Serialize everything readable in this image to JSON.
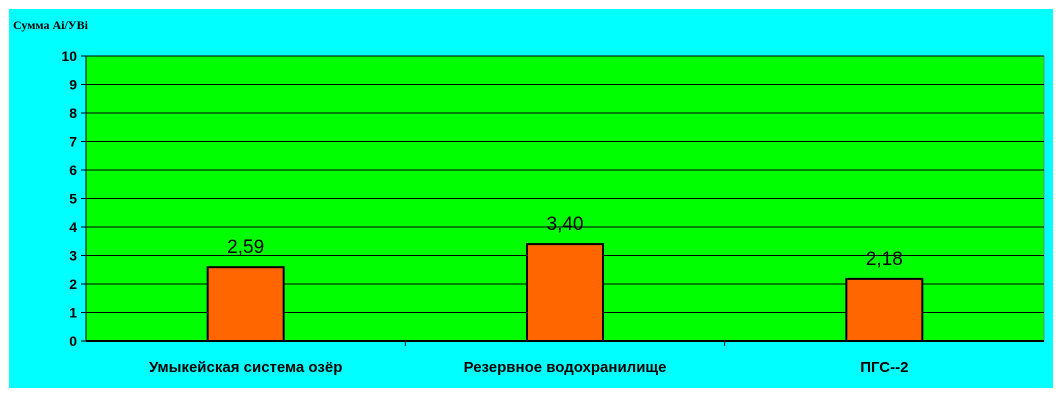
{
  "chart_data": {
    "type": "bar",
    "title": "",
    "ylabel": "Сумма Ai/УВi",
    "xlabel": "",
    "categories": [
      "Умыкейская система озёр",
      "Резервное водохранилище",
      "ПГС--2"
    ],
    "values": [
      2.59,
      3.4,
      2.18
    ],
    "data_labels": [
      "2,59",
      "3,40",
      "2,18"
    ],
    "y_ticks": [
      "0",
      "1",
      "2",
      "3",
      "4",
      "5",
      "6",
      "7",
      "8",
      "9",
      "10"
    ],
    "ylim": [
      0,
      10
    ],
    "grid": true,
    "legend": "none",
    "colors": {
      "background": "#00ffff",
      "plot_area": "#00ff00",
      "bar_fill": "#ff6600",
      "bar_stroke": "#000000",
      "gridline": "#000000"
    }
  }
}
